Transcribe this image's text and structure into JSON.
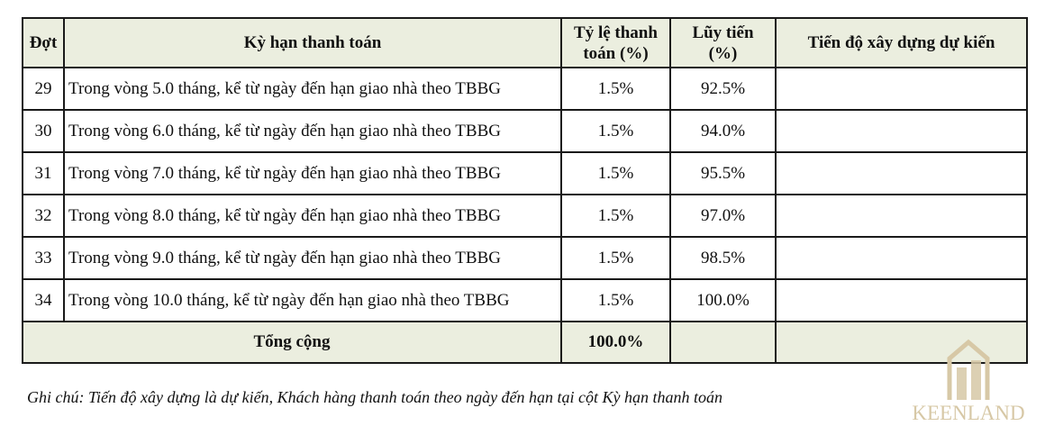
{
  "table": {
    "headers": {
      "id": "Đợt",
      "term": "Kỳ hạn thanh toán",
      "rate_line1": "Tỷ lệ thanh",
      "rate_line2": "toán (%)",
      "cum_line1": "Lũy tiến",
      "cum_line2": "(%)",
      "progress": "Tiến độ xây dựng dự kiến"
    },
    "rows": [
      {
        "id": "29",
        "term": "Trong vòng 5.0 tháng,  kể từ ngày đến hạn giao nhà theo TBBG",
        "rate": "1.5%",
        "cumulative": "92.5%",
        "progress": ""
      },
      {
        "id": "30",
        "term": "Trong vòng 6.0 tháng,  kể từ ngày đến hạn giao nhà theo TBBG",
        "rate": "1.5%",
        "cumulative": "94.0%",
        "progress": ""
      },
      {
        "id": "31",
        "term": "Trong vòng 7.0 tháng,  kể từ ngày đến hạn giao nhà theo TBBG",
        "rate": "1.5%",
        "cumulative": "95.5%",
        "progress": ""
      },
      {
        "id": "32",
        "term": "Trong vòng 8.0 tháng,  kể từ ngày đến hạn giao nhà theo TBBG",
        "rate": "1.5%",
        "cumulative": "97.0%",
        "progress": ""
      },
      {
        "id": "33",
        "term": "Trong vòng 9.0 tháng,  kể từ ngày đến hạn giao nhà theo TBBG",
        "rate": "1.5%",
        "cumulative": "98.5%",
        "progress": ""
      },
      {
        "id": "34",
        "term": "Trong vòng 10.0 tháng,  kể từ ngày đến hạn giao nhà theo TBBG",
        "rate": "1.5%",
        "cumulative": "100.0%",
        "progress": ""
      }
    ],
    "total": {
      "label": "Tổng cộng",
      "value": "100.0%"
    }
  },
  "note": "Ghi chú: Tiến độ xây dựng là dự kiến, Khách hàng thanh toán theo ngày đến hạn tại cột Kỳ hạn thanh toán",
  "logo": {
    "text": "KEENLAND",
    "icon": "building-icon",
    "color": "#d7c8a6"
  }
}
